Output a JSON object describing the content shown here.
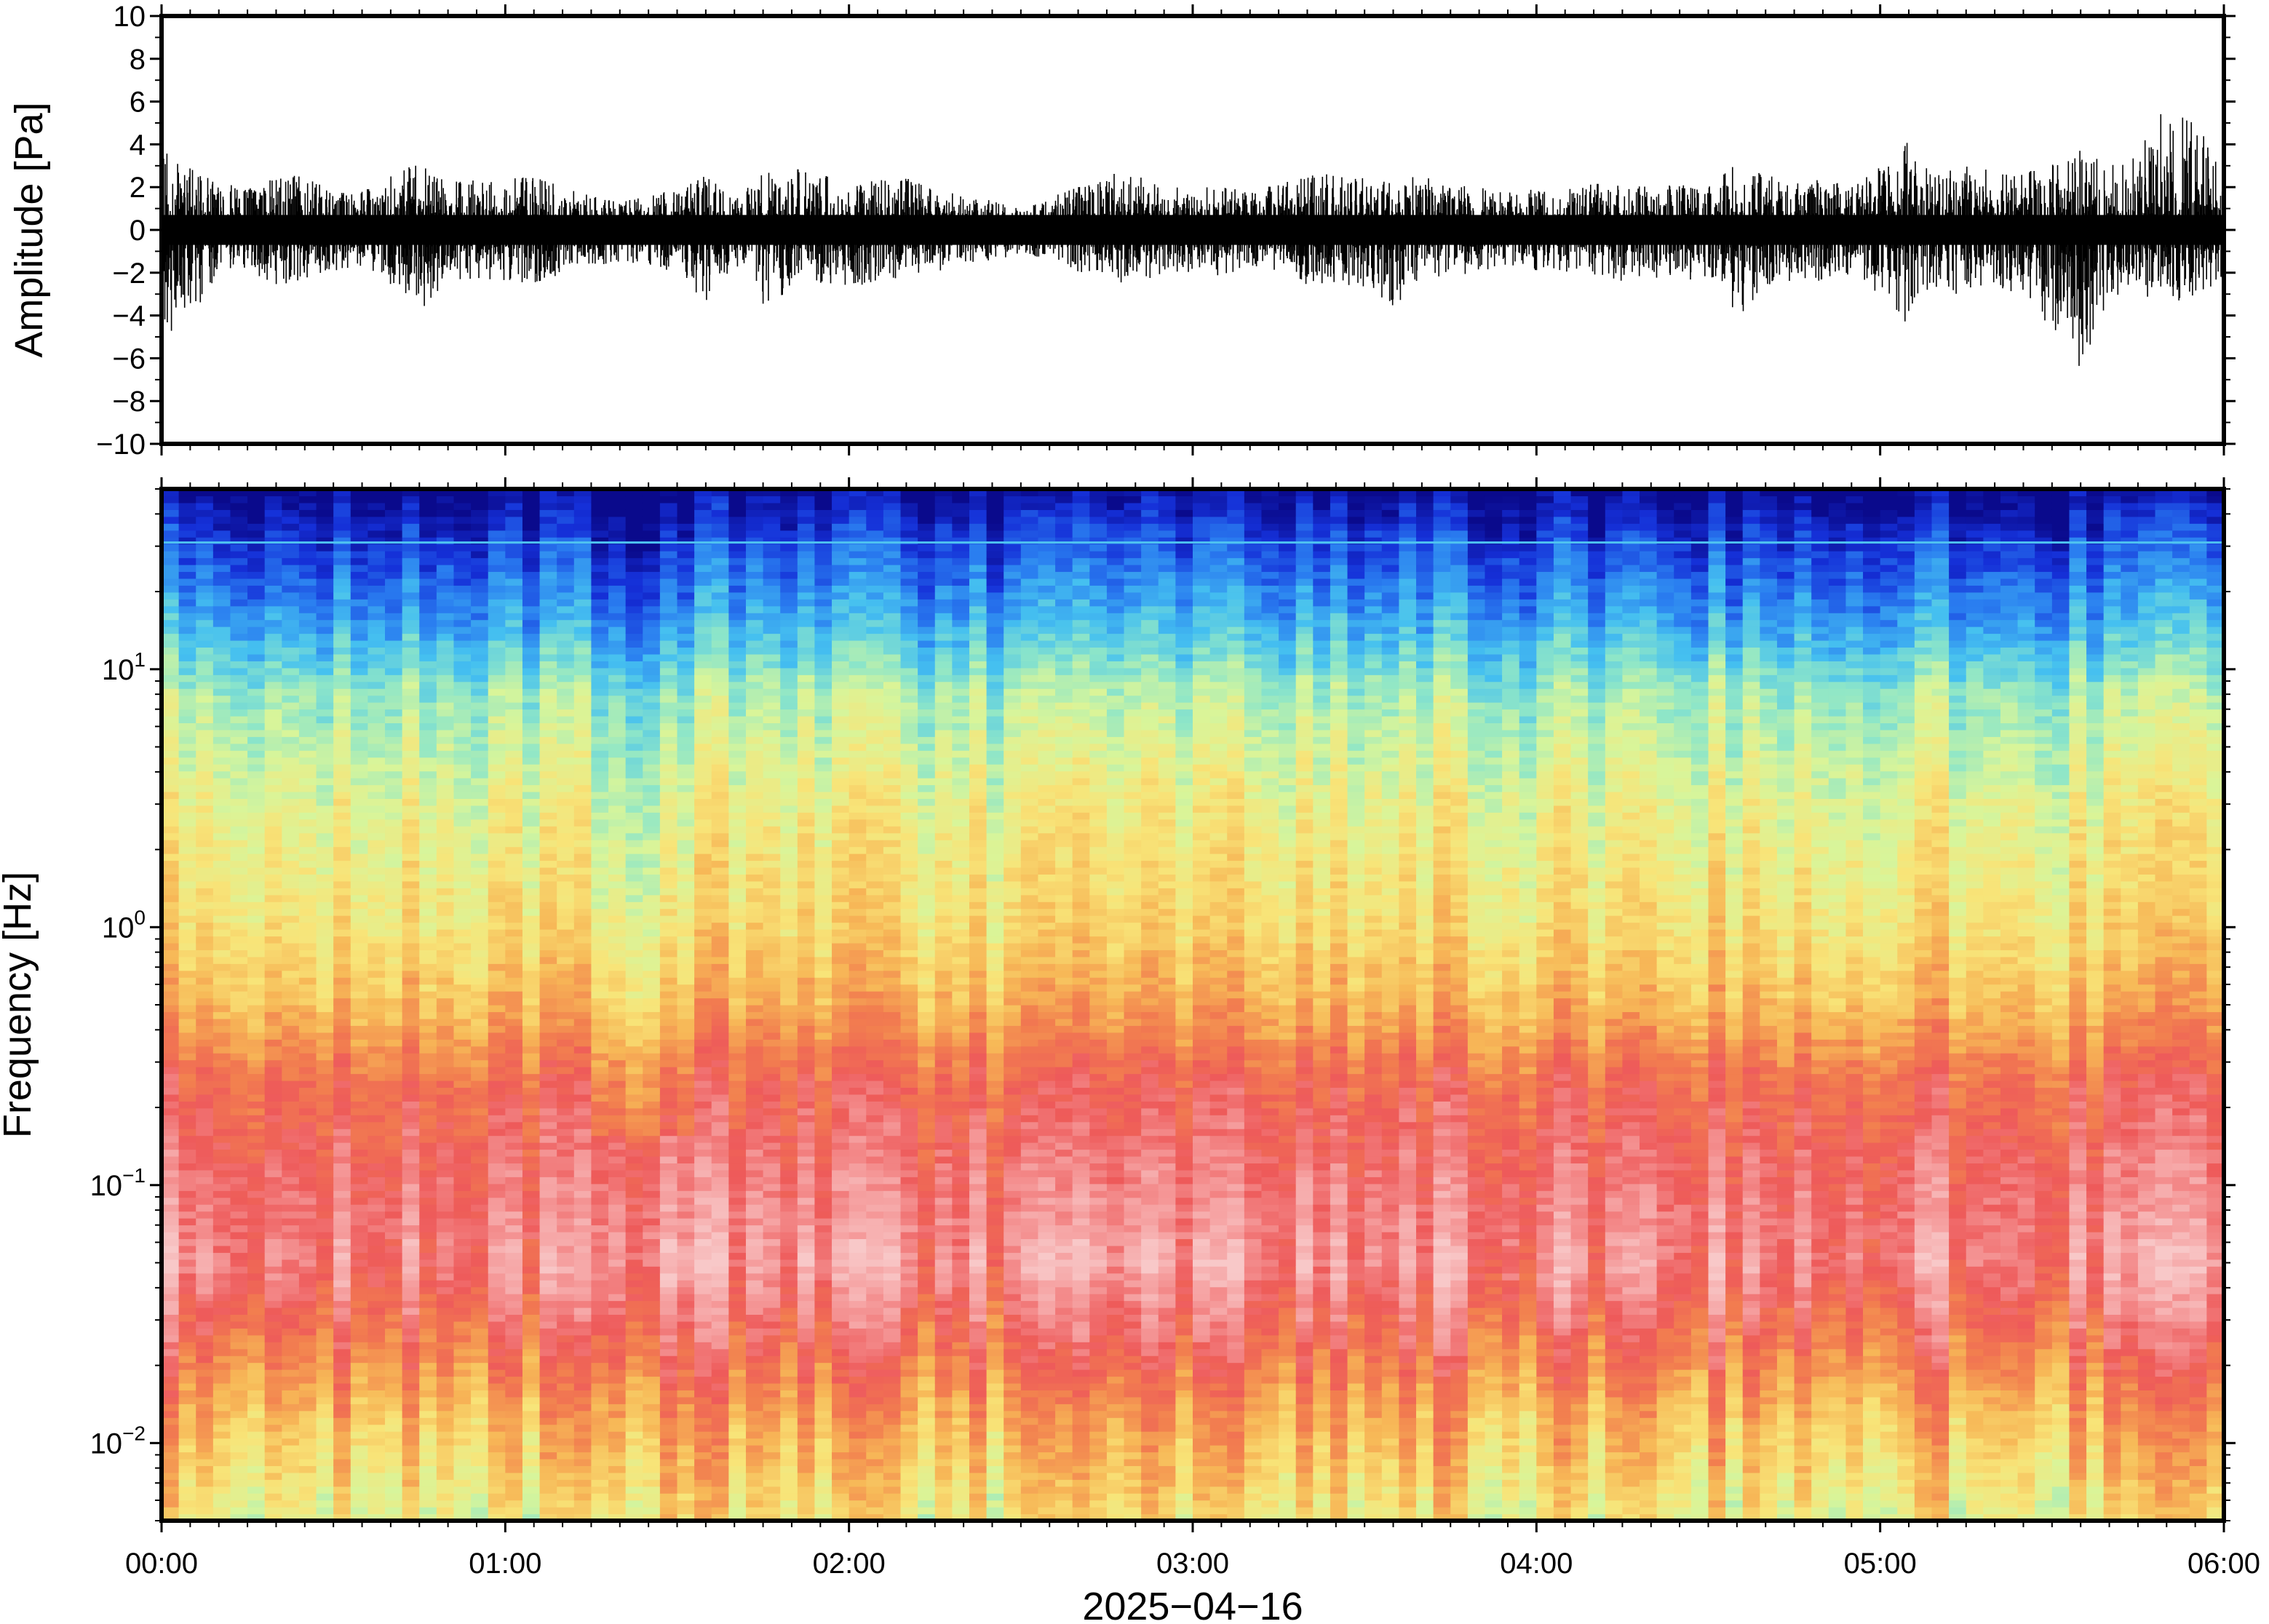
{
  "chart_data": [
    {
      "type": "line",
      "ylabel": "Amplitude [Pa]",
      "ylim": [
        -10,
        10
      ],
      "yticks": [
        "10",
        "8",
        "6",
        "4",
        "2",
        "0",
        "−2",
        "−4",
        "−6",
        "−8",
        "−10"
      ],
      "xlim": [
        "2025-04-16T00:00",
        "2025-04-16T06:00"
      ],
      "grid": false,
      "series": [
        {
          "color": "#000000",
          "x": [
            "00:00",
            "00:05",
            "00:10",
            "00:15",
            "00:20",
            "00:25",
            "00:30",
            "00:35",
            "00:40",
            "00:45",
            "00:50",
            "00:55",
            "01:00",
            "01:05",
            "01:10",
            "01:15",
            "01:20",
            "01:25",
            "01:30",
            "01:35",
            "01:40",
            "01:45",
            "01:50",
            "01:55",
            "02:00",
            "02:05",
            "02:10",
            "02:15",
            "02:20",
            "02:25",
            "02:30",
            "02:35",
            "02:40",
            "02:45",
            "02:50",
            "02:55",
            "03:00",
            "03:05",
            "03:10",
            "03:15",
            "03:20",
            "03:25",
            "03:30",
            "03:35",
            "03:40",
            "03:45",
            "03:50",
            "03:55",
            "04:00",
            "04:05",
            "04:10",
            "04:15",
            "04:20",
            "04:25",
            "04:30",
            "04:35",
            "04:40",
            "04:45",
            "04:50",
            "04:55",
            "05:00",
            "05:05",
            "05:10",
            "05:15",
            "05:20",
            "05:25",
            "05:30",
            "05:35",
            "05:40",
            "05:45",
            "05:50",
            "05:55",
            "06:00"
          ],
          "envelope_max": [
            4.2,
            3.0,
            2.2,
            2.0,
            2.5,
            2.6,
            2.0,
            1.8,
            2.5,
            3.2,
            2.2,
            2.4,
            2.4,
            2.6,
            2.0,
            1.6,
            1.3,
            1.6,
            2.0,
            2.8,
            1.5,
            2.8,
            2.9,
            2.6,
            2.2,
            2.4,
            2.6,
            2.0,
            1.6,
            1.4,
            1.0,
            1.6,
            2.0,
            2.8,
            2.6,
            2.0,
            2.0,
            2.0,
            1.8,
            2.2,
            2.6,
            2.6,
            2.6,
            2.2,
            2.6,
            2.2,
            2.0,
            1.8,
            2.0,
            2.0,
            2.4,
            2.2,
            2.0,
            2.2,
            2.0,
            3.2,
            2.6,
            2.2,
            2.4,
            2.0,
            3.0,
            4.4,
            2.6,
            3.0,
            2.8,
            2.6,
            3.2,
            3.8,
            3.0,
            3.6,
            6.0,
            5.0,
            3.0
          ],
          "envelope_min": [
            -5.0,
            -4.2,
            -2.2,
            -2.0,
            -2.6,
            -2.4,
            -2.0,
            -2.0,
            -2.6,
            -3.8,
            -2.4,
            -2.4,
            -2.4,
            -2.6,
            -2.0,
            -1.6,
            -1.6,
            -1.8,
            -2.0,
            -3.4,
            -1.6,
            -3.6,
            -2.8,
            -2.6,
            -2.6,
            -2.6,
            -2.4,
            -2.0,
            -1.6,
            -1.4,
            -1.2,
            -1.4,
            -2.0,
            -2.4,
            -2.6,
            -2.0,
            -2.0,
            -2.2,
            -1.8,
            -2.0,
            -2.6,
            -2.6,
            -2.8,
            -3.8,
            -2.4,
            -2.2,
            -2.0,
            -1.8,
            -2.0,
            -2.0,
            -2.2,
            -2.4,
            -2.2,
            -2.4,
            -2.2,
            -4.2,
            -2.6,
            -2.4,
            -2.4,
            -2.2,
            -3.0,
            -4.6,
            -2.6,
            -3.2,
            -3.0,
            -2.8,
            -4.8,
            -6.6,
            -3.2,
            -3.0,
            -3.4,
            -3.2,
            -2.4
          ]
        }
      ]
    },
    {
      "type": "heatmap",
      "ylabel": "Frequency [Hz]",
      "yscale": "log",
      "ylim": [
        0.005,
        50
      ],
      "yticks": [
        {
          "base": "10",
          "exp": "1",
          "value": 10
        },
        {
          "base": "10",
          "exp": "0",
          "value": 1
        },
        {
          "base": "10",
          "exp": "−1",
          "value": 0.1
        },
        {
          "base": "10",
          "exp": "−2",
          "value": 0.01
        }
      ],
      "xlabel": "2025−04−16",
      "xticks": [
        "00:00",
        "01:00",
        "02:00",
        "03:00",
        "04:00",
        "05:00",
        "06:00"
      ],
      "xlim": [
        "2025-04-16T00:00",
        "2025-04-16T06:00"
      ],
      "colormap": "spectral (low = blue, high = pink)",
      "colors": [
        "#0a0a8c",
        "#1530d8",
        "#2a7ef0",
        "#45c0f0",
        "#8ee6c8",
        "#d8f59a",
        "#f8e478",
        "#f7b857",
        "#f27f4f",
        "#ee5a5a",
        "#f59a9a",
        "#f8c8c8"
      ],
      "frequency_profile": [
        {
          "freq_hz": 50,
          "level": 0.0
        },
        {
          "freq_hz": 30,
          "level": 0.12
        },
        {
          "freq_hz": 15,
          "level": 0.25
        },
        {
          "freq_hz": 8,
          "level": 0.4
        },
        {
          "freq_hz": 3,
          "level": 0.5
        },
        {
          "freq_hz": 1,
          "level": 0.56
        },
        {
          "freq_hz": 0.5,
          "level": 0.64
        },
        {
          "freq_hz": 0.25,
          "level": 0.78
        },
        {
          "freq_hz": 0.1,
          "level": 0.86
        },
        {
          "freq_hz": 0.05,
          "level": 0.9
        },
        {
          "freq_hz": 0.025,
          "level": 0.78
        },
        {
          "freq_hz": 0.012,
          "level": 0.64
        },
        {
          "freq_hz": 0.006,
          "level": 0.55
        },
        {
          "freq_hz": 0.005,
          "level": 0.52
        }
      ],
      "narrowband_line_hz": 31,
      "grid": false
    }
  ]
}
